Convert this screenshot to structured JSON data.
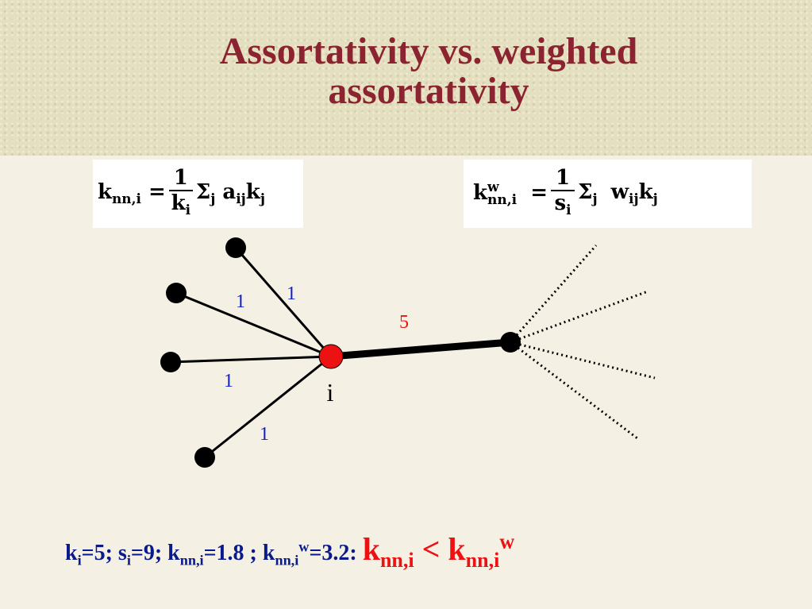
{
  "title": {
    "line1": "Assortativity vs. weighted",
    "line2": "assortativity"
  },
  "formula1": {
    "lhs": "k",
    "lhs_sub": "nn,i",
    "eq": "=",
    "num": "1",
    "den": "k",
    "den_sub": "i",
    "sum": "Σ",
    "sum_sub": "j",
    "term": "a",
    "term_sub": "ij",
    "term2": "k",
    "term2_sub": "j"
  },
  "formula2": {
    "lhs": "k",
    "lhs_sup": "w",
    "lhs_sub": "nn,i",
    "eq": "=",
    "num": "1",
    "den": "s",
    "den_sub": "i",
    "sum": "Σ",
    "sum_sub": "j",
    "term": "w",
    "term_sub": "ij",
    "term2": "k",
    "term2_sub": "j"
  },
  "graph": {
    "node_label": "i",
    "edge_labels": [
      "1",
      "1",
      "1",
      "1",
      "5"
    ],
    "colors": {
      "center": "#ee1111",
      "edge_label_blue": "#1020c8",
      "edge_label_red": "#e11"
    }
  },
  "bottom": {
    "k": "k",
    "k_sub": "i",
    "k_val": "=5; ",
    "s": "s",
    "s_sub": "i",
    "s_val": "=9; ",
    "knn": "k",
    "knn_sub": "nn,i",
    "knn_val": "=1.8 ; ",
    "knnw": "k",
    "knnw_sub": "nn,i",
    "knnw_sup": "w",
    "knnw_val": "=3.2: ",
    "ineq_left": "k",
    "ineq_left_sub": "nn,i",
    "ineq_op": " < ",
    "ineq_right": "k",
    "ineq_right_sub": "nn,i",
    "ineq_right_sup": "w"
  }
}
